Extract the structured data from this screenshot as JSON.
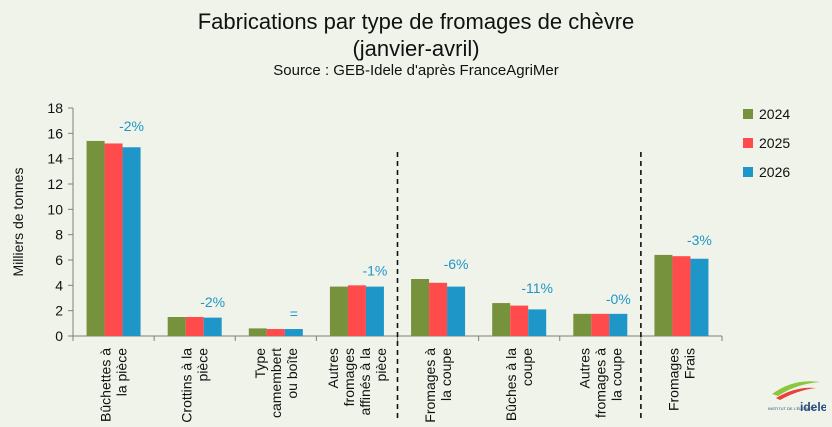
{
  "chart_data": {
    "type": "bar",
    "title_lines": [
      "Fabrications par type de fromages de chèvre",
      "(janvier-avril)"
    ],
    "subtitle": "Source : GEB-Idele d'après FranceAgriMer",
    "ylabel": "Milliers de tonnes",
    "xlabel": "",
    "ylim": [
      0,
      18
    ],
    "yticks": [
      0,
      2,
      4,
      6,
      8,
      10,
      12,
      14,
      16,
      18
    ],
    "grid": false,
    "legend_position": "right",
    "categories": [
      [
        "Bûchettes à",
        "la pièce"
      ],
      [
        "Crottins à la",
        "pièce"
      ],
      [
        "Type",
        "camembert",
        "ou boîte"
      ],
      [
        "Autres",
        "fromages",
        "affinés à la",
        "pièce"
      ],
      [
        "Fromages à",
        "la coupe"
      ],
      [
        "Bûches à la",
        "coupe"
      ],
      [
        "Autres",
        "fromages à",
        "la coupe"
      ],
      [
        "Fromages",
        "Frais"
      ]
    ],
    "series": [
      {
        "name": "2024",
        "color": "#76923c",
        "values": [
          15.4,
          1.5,
          0.6,
          3.9,
          4.5,
          2.6,
          1.75,
          6.4
        ]
      },
      {
        "name": "2025",
        "color": "#ff4b4b",
        "values": [
          15.2,
          1.5,
          0.55,
          4.0,
          4.2,
          2.4,
          1.75,
          6.3
        ]
      },
      {
        "name": "2026",
        "color": "#1e96c8",
        "values": [
          14.9,
          1.45,
          0.55,
          3.9,
          3.9,
          2.1,
          1.75,
          6.1
        ]
      }
    ],
    "annotations": [
      "-2%",
      "-2%",
      "=",
      "-1%",
      "-6%",
      "-11%",
      "-0%",
      "-3%"
    ],
    "annotation_color": "#1e96c8",
    "group_separators_after_index": [
      3,
      6
    ]
  },
  "logo": {
    "small_text": "INSTITUT DE L'ÉLEVAGE",
    "brand_text": "idele"
  }
}
